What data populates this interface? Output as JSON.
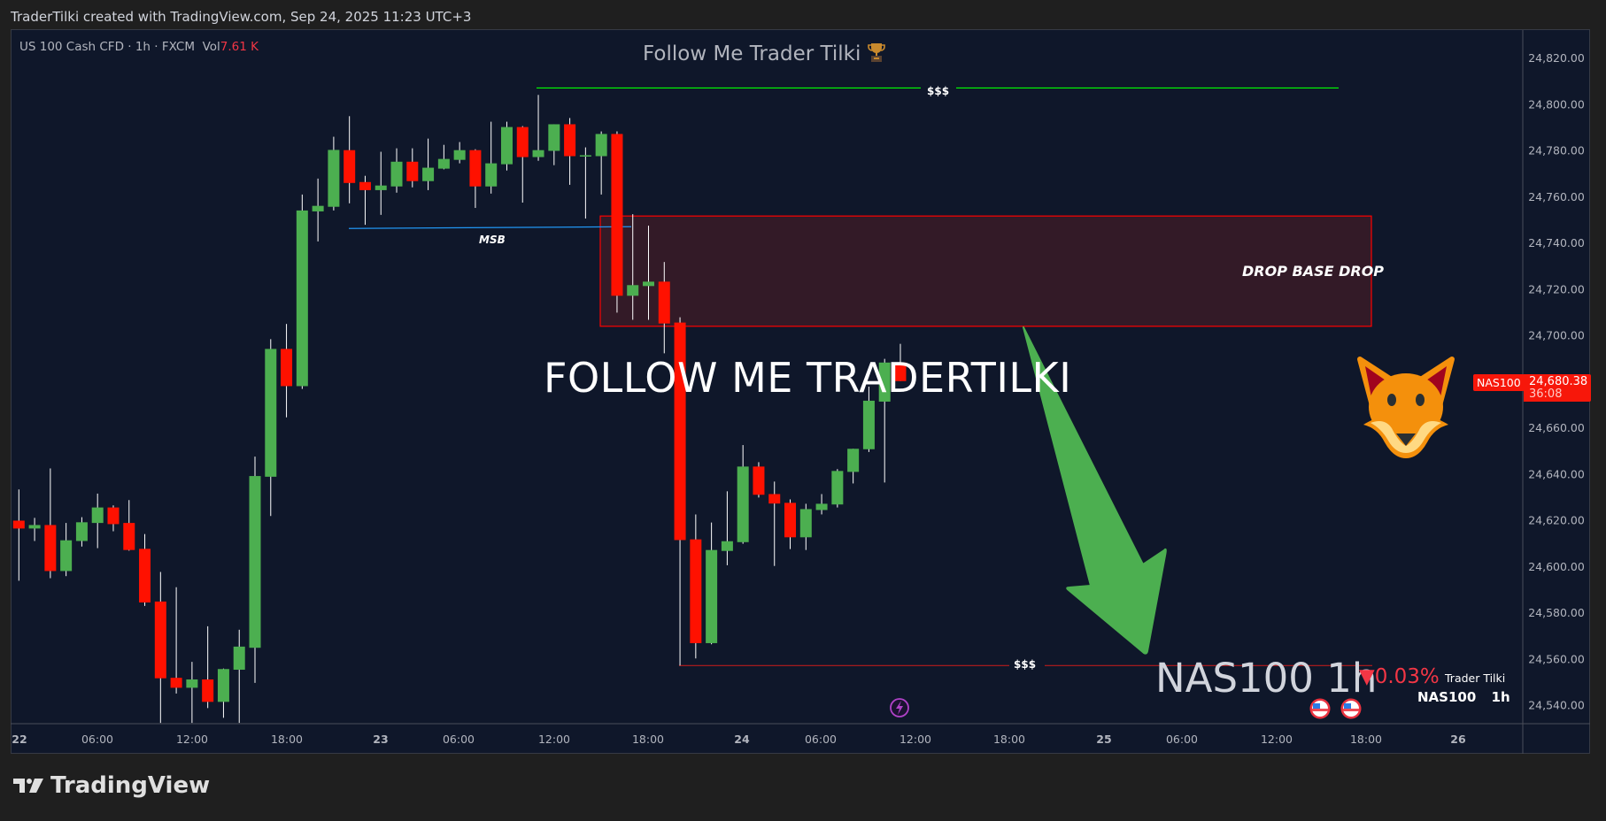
{
  "header": {
    "caption": "TraderTilki created with TradingView.com, Sep 24, 2025 11:23 UTC+3"
  },
  "legend": {
    "symbol": "US 100 Cash CFD · 1h · FXCM",
    "vol_label": "Vol",
    "vol_value": "7.61 K"
  },
  "annotations": {
    "title": "Follow Me Trader Tilki",
    "title_icon": "trophy-icon",
    "big_text": "FOLLOW ME TRADERTILKI",
    "zone_label": "DROP BASE DROP",
    "msb_label": "MSB",
    "top_liquidity_label": "$$$",
    "bottom_liquidity_label": "$$$",
    "arrow": "green-down-arrow",
    "mascot": "fox-icon"
  },
  "watermark": {
    "text": "NAS100 1h",
    "change": "▼0.03%",
    "author": "Trader Tilki",
    "symbol": "NAS100",
    "timeframe": "1h"
  },
  "price_tag": {
    "symbol": "NAS100",
    "price": "24,680.38",
    "countdown": "36:08"
  },
  "events": [
    {
      "icon": "lightning-icon"
    },
    {
      "icon": "us-flag-icon"
    },
    {
      "icon": "us-flag-icon"
    }
  ],
  "colors": {
    "up": "#4caf50",
    "down": "#ff1100",
    "background": "#0f172a",
    "zone": "#331a27",
    "zone_border": "#ff0000",
    "msb": "#2196f3",
    "top_liquidity": "#00ff00",
    "bottom_liquidity": "#b71c1c",
    "arrow": "#4caf50"
  },
  "branding": {
    "logo_text": "TradingView"
  },
  "chart_data": {
    "type": "candlestick",
    "symbol": "US 100 Cash CFD",
    "timeframe": "1h",
    "ylim": [
      24532,
      24832
    ],
    "y_ticks": [
      "24,820.00",
      "24,800.00",
      "24,780.00",
      "24,760.00",
      "24,740.00",
      "24,720.00",
      "24,700.00",
      "24,680.00",
      "24,660.00",
      "24,640.00",
      "24,620.00",
      "24,600.00",
      "24,580.00",
      "24,560.00",
      "24,540.00"
    ],
    "x_ticks": [
      "22",
      "06:00",
      "12:00",
      "18:00",
      "23",
      "06:00",
      "12:00",
      "18:00",
      "24",
      "06:00",
      "12:00",
      "18:00",
      "25",
      "06:00",
      "12:00",
      "18:00",
      "26"
    ],
    "ohlc": [
      [
        24620.0,
        24633.5,
        24594.0,
        24616.6
      ],
      [
        24616.6,
        24621.2,
        24611.2,
        24618.1
      ],
      [
        24618.1,
        24642.6,
        24595.1,
        24598.2
      ],
      [
        24598.2,
        24619.0,
        24596.0,
        24611.5
      ],
      [
        24611.2,
        24621.5,
        24608.8,
        24619.3
      ],
      [
        24619.0,
        24631.7,
        24608.1,
        24625.7
      ],
      [
        24625.7,
        24626.6,
        24615.4,
        24618.5
      ],
      [
        24619.0,
        24628.9,
        24607.0,
        24607.3
      ],
      [
        24607.8,
        24614.2,
        24583.1,
        24584.6
      ],
      [
        24585.0,
        24597.8,
        24532.5,
        24551.8
      ],
      [
        24552.0,
        24591.2,
        24545.2,
        24547.7
      ],
      [
        24547.7,
        24558.9,
        24532.5,
        24551.3
      ],
      [
        24551.3,
        24574.3,
        24538.9,
        24541.6
      ],
      [
        24541.6,
        24556.0,
        24534.7,
        24555.8
      ],
      [
        24555.5,
        24572.8,
        24532.5,
        24565.5
      ],
      [
        24565.0,
        24647.7,
        24549.8,
        24639.3
      ],
      [
        24639.0,
        24698.5,
        24622.0,
        24694.3
      ],
      [
        24694.3,
        24705.1,
        24664.7,
        24678.2
      ],
      [
        24678.2,
        24761.1,
        24677.0,
        24754.2
      ],
      [
        24753.8,
        24768.0,
        24740.8,
        24756.2
      ],
      [
        24755.8,
        24786.1,
        24754.2,
        24780.4
      ],
      [
        24780.3,
        24795.0,
        24757.3,
        24766.1
      ],
      [
        24766.5,
        24769.2,
        24748.0,
        24763.0
      ],
      [
        24763.0,
        24779.6,
        24752.3,
        24765.0
      ],
      [
        24764.6,
        24781.1,
        24761.9,
        24775.3
      ],
      [
        24775.3,
        24781.1,
        24764.2,
        24766.9
      ],
      [
        24766.9,
        24785.3,
        24763.0,
        24772.7
      ],
      [
        24772.3,
        24782.6,
        24772.0,
        24776.5
      ],
      [
        24776.1,
        24783.8,
        24774.6,
        24780.3
      ],
      [
        24780.3,
        24780.7,
        24755.3,
        24764.6
      ],
      [
        24764.6,
        24792.6,
        24761.5,
        24774.6
      ],
      [
        24774.2,
        24792.6,
        24771.5,
        24790.3
      ],
      [
        24790.3,
        24790.7,
        24757.6,
        24777.3
      ],
      [
        24777.3,
        24804.2,
        24775.7,
        24780.3
      ],
      [
        24780.0,
        24791.5,
        24773.8,
        24791.5
      ],
      [
        24791.5,
        24794.2,
        24765.3,
        24777.7
      ],
      [
        24778.0,
        24781.5,
        24750.7,
        24778.1
      ],
      [
        24777.7,
        24788.4,
        24761.1,
        24787.3
      ],
      [
        24787.3,
        24788.4,
        24710.0,
        24717.3
      ],
      [
        24717.3,
        24752.6,
        24706.9,
        24721.9
      ],
      [
        24721.5,
        24747.6,
        24706.9,
        24723.4
      ],
      [
        24723.4,
        24731.9,
        24692.4,
        24705.3
      ],
      [
        24705.7,
        24708.0,
        24557.3,
        24611.6
      ],
      [
        24611.9,
        24622.7,
        24560.4,
        24567.0
      ],
      [
        24567.0,
        24619.2,
        24566.5,
        24607.3
      ],
      [
        24606.9,
        24632.7,
        24600.7,
        24611.1
      ],
      [
        24610.7,
        24652.7,
        24610.0,
        24643.4
      ],
      [
        24643.4,
        24645.3,
        24630.0,
        24631.2
      ],
      [
        24631.5,
        24636.9,
        24600.4,
        24627.4
      ],
      [
        24627.7,
        24629.2,
        24607.7,
        24612.8
      ],
      [
        24612.8,
        24627.3,
        24607.3,
        24625.0
      ],
      [
        24624.6,
        24631.5,
        24622.7,
        24627.3
      ],
      [
        24627.0,
        24642.3,
        24625.7,
        24641.5
      ],
      [
        24641.1,
        24651.1,
        24636.1,
        24651.1
      ],
      [
        24650.9,
        24678.0,
        24649.7,
        24671.9
      ],
      [
        24671.5,
        24690.0,
        24636.5,
        24688.4
      ],
      [
        24688.4,
        24696.5,
        24680.4,
        24680.38
      ]
    ],
    "last_price": 24680.38,
    "zone": {
      "label": "DROP BASE DROP",
      "top": 24751.8,
      "bottom": 24704.1
    },
    "levels": [
      {
        "label": "$$$",
        "price": 24807.2
      },
      {
        "label": "MSB",
        "price": 24746.8
      },
      {
        "label": "$$$",
        "price": 24557.3
      }
    ]
  }
}
